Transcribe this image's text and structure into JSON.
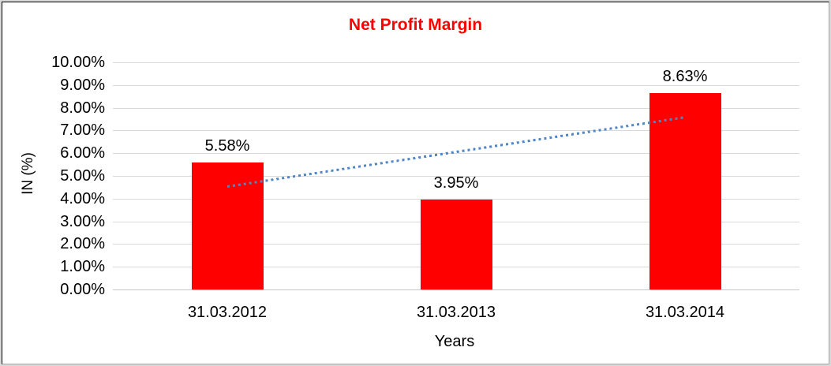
{
  "chart_data": {
    "type": "bar",
    "title": "Net Profit Margin",
    "title_color": "#ff0000",
    "xlabel": "Years",
    "ylabel": "IN (%)",
    "categories": [
      "31.03.2012",
      "31.03.2013",
      "31.03.2014"
    ],
    "values": [
      5.58,
      3.95,
      8.63
    ],
    "data_labels": [
      "5.58%",
      "3.95%",
      "8.63%"
    ],
    "bar_color": "#ff0000",
    "ylim": [
      0,
      10
    ],
    "yticks": [
      {
        "value": 0,
        "label": "0.00%"
      },
      {
        "value": 1,
        "label": "1.00%"
      },
      {
        "value": 2,
        "label": "2.00%"
      },
      {
        "value": 3,
        "label": "3.00%"
      },
      {
        "value": 4,
        "label": "4.00%"
      },
      {
        "value": 5,
        "label": "5.00%"
      },
      {
        "value": 6,
        "label": "6.00%"
      },
      {
        "value": 7,
        "label": "7.00%"
      },
      {
        "value": 8,
        "label": "8.00%"
      },
      {
        "value": 9,
        "label": "9.00%"
      },
      {
        "value": 10,
        "label": "10.00%"
      }
    ],
    "grid": true,
    "legend": "none",
    "gridline_color": "#d9d9d9",
    "trendline": {
      "type": "linear",
      "style": "dotted",
      "color": "#4f86c6",
      "start_value": 4.53,
      "end_value": 7.58
    }
  }
}
